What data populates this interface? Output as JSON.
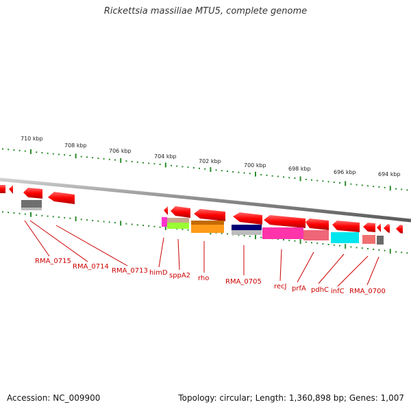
{
  "title": "Rickettsia massiliae MTU5, complete genome",
  "footer": {
    "accession": "Accession: NC_009900",
    "summary": "Topology: circular; Length: 1,360,898 bp; Genes: 1,007"
  },
  "scale_labels": [
    "710 kbp",
    "708 kbp",
    "706 kbp",
    "704 kbp",
    "702 kbp",
    "700 kbp",
    "698 kbp",
    "696 kbp",
    "694 kbp"
  ],
  "gene_labels": [
    "RMA_0715",
    "RMA_0714",
    "RMA_0713",
    "himD",
    "sppA2",
    "rho",
    "RMA_0705",
    "recJ",
    "prfA",
    "pdhC",
    "infC",
    "RMA_0700"
  ],
  "colors": {
    "gene_red": "#ff0000",
    "backbone": "#888888",
    "tick_green": "#2a8a2a",
    "label_red": "#cc0000"
  }
}
